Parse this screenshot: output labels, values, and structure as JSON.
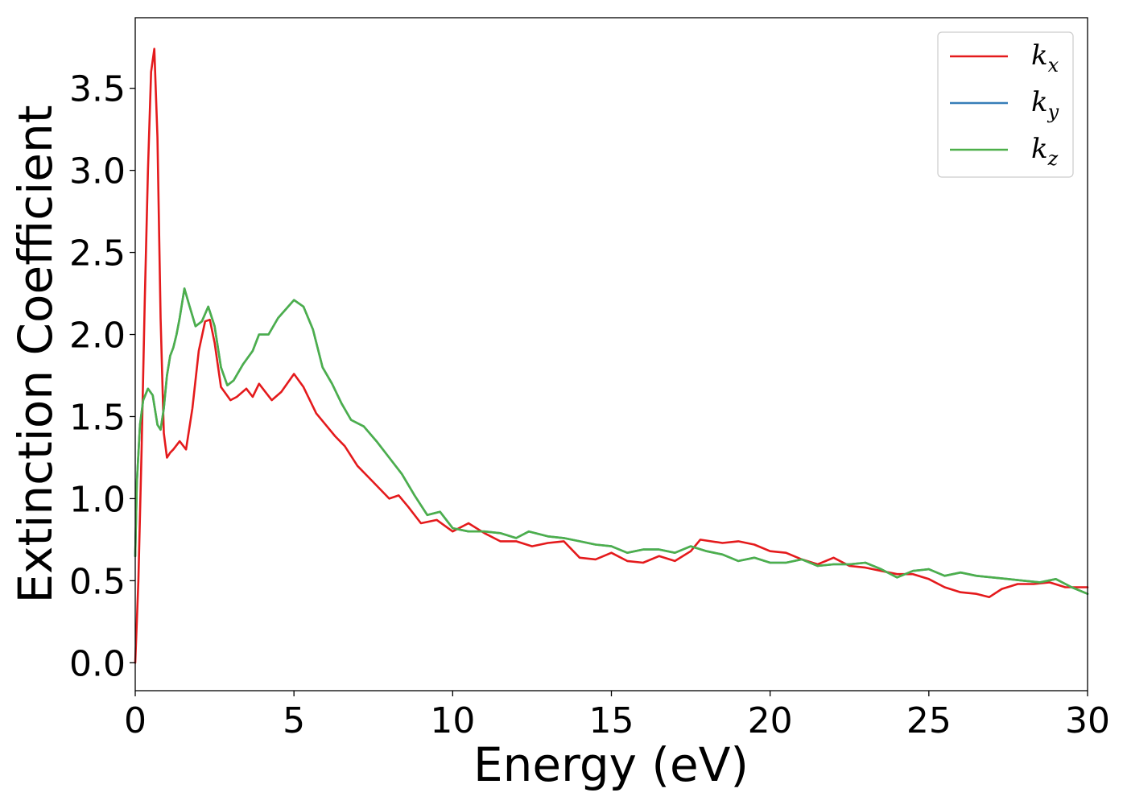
{
  "chart_data": {
    "type": "line",
    "title": "",
    "xlabel": "Energy (eV)",
    "ylabel": "Extinction Coefficient",
    "xlim": [
      0,
      30
    ],
    "ylim": [
      -0.17,
      3.93
    ],
    "xticks": [
      "0",
      "5",
      "10",
      "15",
      "20",
      "25",
      "30"
    ],
    "yticks": [
      "0.0",
      "0.5",
      "1.0",
      "1.5",
      "2.0",
      "2.5",
      "3.0",
      "3.5"
    ],
    "grid": false,
    "legend": {
      "placement": "top-right",
      "entries": [
        {
          "base": "k",
          "sub": "x"
        },
        {
          "base": "k",
          "sub": "y"
        },
        {
          "base": "k",
          "sub": "z"
        }
      ]
    },
    "series": [
      {
        "name": "kx",
        "color": "#e41a1c",
        "x": [
          0,
          0.1,
          0.2,
          0.3,
          0.4,
          0.5,
          0.6,
          0.7,
          0.8,
          0.9,
          1.0,
          1.1,
          1.2,
          1.4,
          1.6,
          1.8,
          2.0,
          2.2,
          2.35,
          2.5,
          2.7,
          3.0,
          3.2,
          3.5,
          3.7,
          3.9,
          4.1,
          4.3,
          4.6,
          5.0,
          5.3,
          5.7,
          6.0,
          6.3,
          6.6,
          7.0,
          7.5,
          8.0,
          8.3,
          8.6,
          9.0,
          9.5,
          10.0,
          10.5,
          11.0,
          11.5,
          12.0,
          12.5,
          13.0,
          13.5,
          14.0,
          14.5,
          15.0,
          15.5,
          16.0,
          16.5,
          17.0,
          17.5,
          17.8,
          18.5,
          19.0,
          19.5,
          20.0,
          20.5,
          21.0,
          21.5,
          22.0,
          22.5,
          23.0,
          23.5,
          24.0,
          24.5,
          25.0,
          25.5,
          26.0,
          26.5,
          26.9,
          27.3,
          27.8,
          28.3,
          28.8,
          29.3,
          30.0
        ],
        "y": [
          0.0,
          0.5,
          1.3,
          2.2,
          3.0,
          3.6,
          3.74,
          3.2,
          2.1,
          1.4,
          1.25,
          1.28,
          1.3,
          1.35,
          1.3,
          1.55,
          1.9,
          2.08,
          2.09,
          1.95,
          1.68,
          1.6,
          1.62,
          1.67,
          1.62,
          1.7,
          1.65,
          1.6,
          1.65,
          1.76,
          1.68,
          1.52,
          1.45,
          1.38,
          1.32,
          1.2,
          1.1,
          1.0,
          1.02,
          0.95,
          0.85,
          0.87,
          0.8,
          0.85,
          0.79,
          0.74,
          0.74,
          0.71,
          0.73,
          0.74,
          0.64,
          0.63,
          0.67,
          0.62,
          0.61,
          0.65,
          0.62,
          0.68,
          0.75,
          0.73,
          0.74,
          0.72,
          0.68,
          0.67,
          0.63,
          0.6,
          0.64,
          0.59,
          0.58,
          0.56,
          0.54,
          0.54,
          0.51,
          0.46,
          0.43,
          0.42,
          0.4,
          0.45,
          0.48,
          0.48,
          0.49,
          0.46,
          0.46
        ]
      },
      {
        "name": "ky",
        "color": "#377eb8",
        "x": [
          0,
          0.05,
          0.15,
          0.25,
          0.4,
          0.55,
          0.7,
          0.8,
          0.9,
          1.0,
          1.1,
          1.2,
          1.3,
          1.4,
          1.55,
          1.7,
          1.9,
          2.1,
          2.3,
          2.5,
          2.7,
          2.9,
          3.1,
          3.4,
          3.7,
          3.9,
          4.2,
          4.5,
          5.0,
          5.3,
          5.6,
          5.9,
          6.2,
          6.5,
          6.8,
          7.2,
          7.6,
          8.0,
          8.4,
          8.8,
          9.2,
          9.6,
          10.0,
          10.5,
          11.0,
          11.5,
          12.0,
          12.4,
          13.0,
          13.5,
          14.0,
          14.5,
          15.0,
          15.5,
          16.0,
          16.5,
          17.0,
          17.5,
          18.0,
          18.5,
          19.0,
          19.5,
          20.0,
          20.5,
          21.0,
          21.5,
          22.0,
          22.5,
          23.0,
          23.5,
          24.0,
          24.5,
          25.0,
          25.5,
          26.0,
          26.5,
          27.0,
          27.5,
          28.0,
          28.5,
          29.0,
          29.5,
          30.0
        ],
        "y": [
          0.65,
          1.1,
          1.45,
          1.6,
          1.67,
          1.63,
          1.45,
          1.42,
          1.55,
          1.75,
          1.87,
          1.92,
          2.0,
          2.1,
          2.28,
          2.18,
          2.05,
          2.08,
          2.17,
          2.05,
          1.8,
          1.69,
          1.72,
          1.82,
          1.9,
          2.0,
          2.0,
          2.1,
          2.21,
          2.17,
          2.03,
          1.8,
          1.7,
          1.58,
          1.48,
          1.44,
          1.35,
          1.25,
          1.15,
          1.02,
          0.9,
          0.92,
          0.82,
          0.8,
          0.8,
          0.79,
          0.76,
          0.8,
          0.77,
          0.76,
          0.74,
          0.72,
          0.71,
          0.67,
          0.69,
          0.69,
          0.67,
          0.71,
          0.68,
          0.66,
          0.62,
          0.64,
          0.61,
          0.61,
          0.63,
          0.59,
          0.6,
          0.6,
          0.61,
          0.57,
          0.52,
          0.56,
          0.57,
          0.53,
          0.55,
          0.53,
          0.52,
          0.51,
          0.5,
          0.49,
          0.51,
          0.46,
          0.42
        ]
      },
      {
        "name": "kz",
        "color": "#4daf4a",
        "x": [
          0,
          0.05,
          0.15,
          0.25,
          0.4,
          0.55,
          0.7,
          0.8,
          0.9,
          1.0,
          1.1,
          1.2,
          1.3,
          1.4,
          1.55,
          1.7,
          1.9,
          2.1,
          2.3,
          2.5,
          2.7,
          2.9,
          3.1,
          3.4,
          3.7,
          3.9,
          4.2,
          4.5,
          5.0,
          5.3,
          5.6,
          5.9,
          6.2,
          6.5,
          6.8,
          7.2,
          7.6,
          8.0,
          8.4,
          8.8,
          9.2,
          9.6,
          10.0,
          10.5,
          11.0,
          11.5,
          12.0,
          12.4,
          13.0,
          13.5,
          14.0,
          14.5,
          15.0,
          15.5,
          16.0,
          16.5,
          17.0,
          17.5,
          18.0,
          18.5,
          19.0,
          19.5,
          20.0,
          20.5,
          21.0,
          21.5,
          22.0,
          22.5,
          23.0,
          23.5,
          24.0,
          24.5,
          25.0,
          25.5,
          26.0,
          26.5,
          27.0,
          27.5,
          28.0,
          28.5,
          29.0,
          29.5,
          30.0
        ],
        "y": [
          0.65,
          1.1,
          1.45,
          1.6,
          1.67,
          1.63,
          1.45,
          1.42,
          1.55,
          1.75,
          1.87,
          1.92,
          2.0,
          2.1,
          2.28,
          2.18,
          2.05,
          2.08,
          2.17,
          2.05,
          1.8,
          1.69,
          1.72,
          1.82,
          1.9,
          2.0,
          2.0,
          2.1,
          2.21,
          2.17,
          2.03,
          1.8,
          1.7,
          1.58,
          1.48,
          1.44,
          1.35,
          1.25,
          1.15,
          1.02,
          0.9,
          0.92,
          0.82,
          0.8,
          0.8,
          0.79,
          0.76,
          0.8,
          0.77,
          0.76,
          0.74,
          0.72,
          0.71,
          0.67,
          0.69,
          0.69,
          0.67,
          0.71,
          0.68,
          0.66,
          0.62,
          0.64,
          0.61,
          0.61,
          0.63,
          0.59,
          0.6,
          0.6,
          0.61,
          0.57,
          0.52,
          0.56,
          0.57,
          0.53,
          0.55,
          0.53,
          0.52,
          0.51,
          0.5,
          0.49,
          0.51,
          0.46,
          0.42
        ]
      }
    ]
  }
}
